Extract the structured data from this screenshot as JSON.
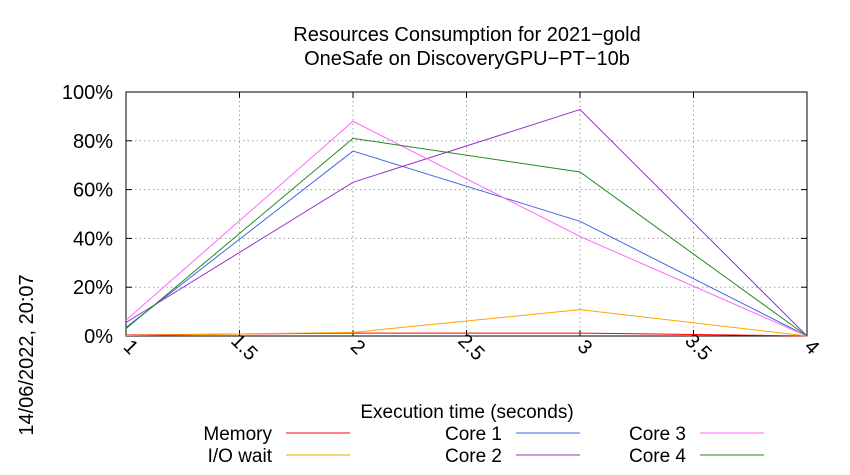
{
  "chart_data": {
    "type": "line",
    "title": [
      "Resources Consumption for 2021−gold",
      "OneSafe on DiscoveryGPU−PT−10b"
    ],
    "xlabel": "Execution time (seconds)",
    "ylabel": "",
    "side_label": "14/06/2022, 20:07",
    "xlim": [
      1,
      4
    ],
    "ylim": [
      0,
      100
    ],
    "x_ticks": [
      "1",
      "1.5",
      "2",
      "2.5",
      "3",
      "3.5",
      "4"
    ],
    "x_tick_values": [
      1,
      1.5,
      2,
      2.5,
      3,
      3.5,
      4
    ],
    "y_ticks": [
      "0%",
      "20%",
      "40%",
      "60%",
      "80%",
      "100%"
    ],
    "y_tick_values": [
      0,
      20,
      40,
      60,
      80,
      100
    ],
    "grid": true,
    "legend_position": "bottom",
    "x": [
      1,
      2,
      3,
      4
    ],
    "series": [
      {
        "name": "Memory",
        "color": "#ff0000",
        "values": [
          0.4,
          1.2,
          1.2,
          0
        ]
      },
      {
        "name": "I/O wait",
        "color": "#ffa500",
        "values": [
          0.2,
          1.5,
          10.8,
          0
        ]
      },
      {
        "name": "Core 1",
        "color": "#4169e1",
        "values": [
          3.5,
          75.8,
          47,
          0
        ]
      },
      {
        "name": "Core 2",
        "color": "#9932cc",
        "values": [
          5.5,
          63,
          92.8,
          0
        ]
      },
      {
        "name": "Core 3",
        "color": "#ff66ff",
        "values": [
          6.5,
          88,
          40.8,
          0
        ]
      },
      {
        "name": "Core 4",
        "color": "#228b22",
        "values": [
          3,
          81,
          67.2,
          0
        ]
      }
    ]
  }
}
